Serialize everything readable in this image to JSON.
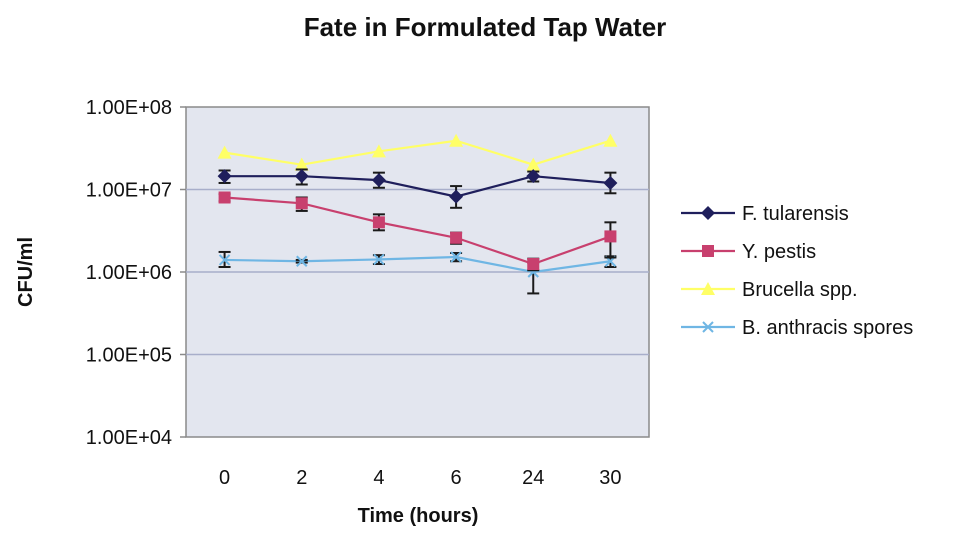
{
  "chart_data": {
    "type": "line",
    "title": "Fate in Formulated Tap Water",
    "xlabel": "Time (hours)",
    "ylabel": "CFU/ml",
    "y_scale": "log",
    "ylim": [
      10000,
      100000000
    ],
    "y_tick_values": [
      10000,
      100000,
      1000000,
      10000000,
      100000000
    ],
    "y_tick_labels": [
      "1.00E+04",
      "1.00E+05",
      "1.00E+06",
      "1.00E+07",
      "1.00E+08"
    ],
    "categories": [
      "0",
      "2",
      "4",
      "6",
      "24",
      "30"
    ],
    "grid": "horizontal major gridlines",
    "legend_position": "right",
    "series": [
      {
        "name": "F. tularensis",
        "color": "#1f1f5c",
        "marker": "diamond",
        "values": [
          14500000,
          14500000,
          13000000,
          8200000,
          14500000,
          12000000
        ],
        "err_low": [
          12000000,
          11500000,
          10500000,
          6000000,
          12500000,
          9000000
        ],
        "err_high": [
          17000000,
          17500000,
          16000000,
          11000000,
          16500000,
          16000000
        ]
      },
      {
        "name": "Y. pestis",
        "color": "#c8406e",
        "marker": "square",
        "values": [
          8000000,
          6800000,
          4000000,
          2600000,
          1250000,
          2700000
        ],
        "err_low": [
          7200000,
          5500000,
          3200000,
          2200000,
          1050000,
          1500000
        ],
        "err_high": [
          8800000,
          8000000,
          5000000,
          3000000,
          1450000,
          4000000
        ]
      },
      {
        "name": "Brucella spp.",
        "color": "#ffff66",
        "marker": "triangle",
        "values": [
          28000000,
          20000000,
          29000000,
          39000000,
          20000000,
          39000000
        ]
      },
      {
        "name": "B. anthracis spores",
        "color": "#6fb6e4",
        "marker": "x",
        "values": [
          1400000,
          1350000,
          1420000,
          1520000,
          1000000,
          1350000
        ],
        "err_low": [
          1150000,
          1300000,
          1250000,
          1350000,
          550000,
          1150000
        ],
        "err_high": [
          1750000,
          1400000,
          1600000,
          1700000,
          1300000,
          1550000
        ]
      }
    ]
  }
}
